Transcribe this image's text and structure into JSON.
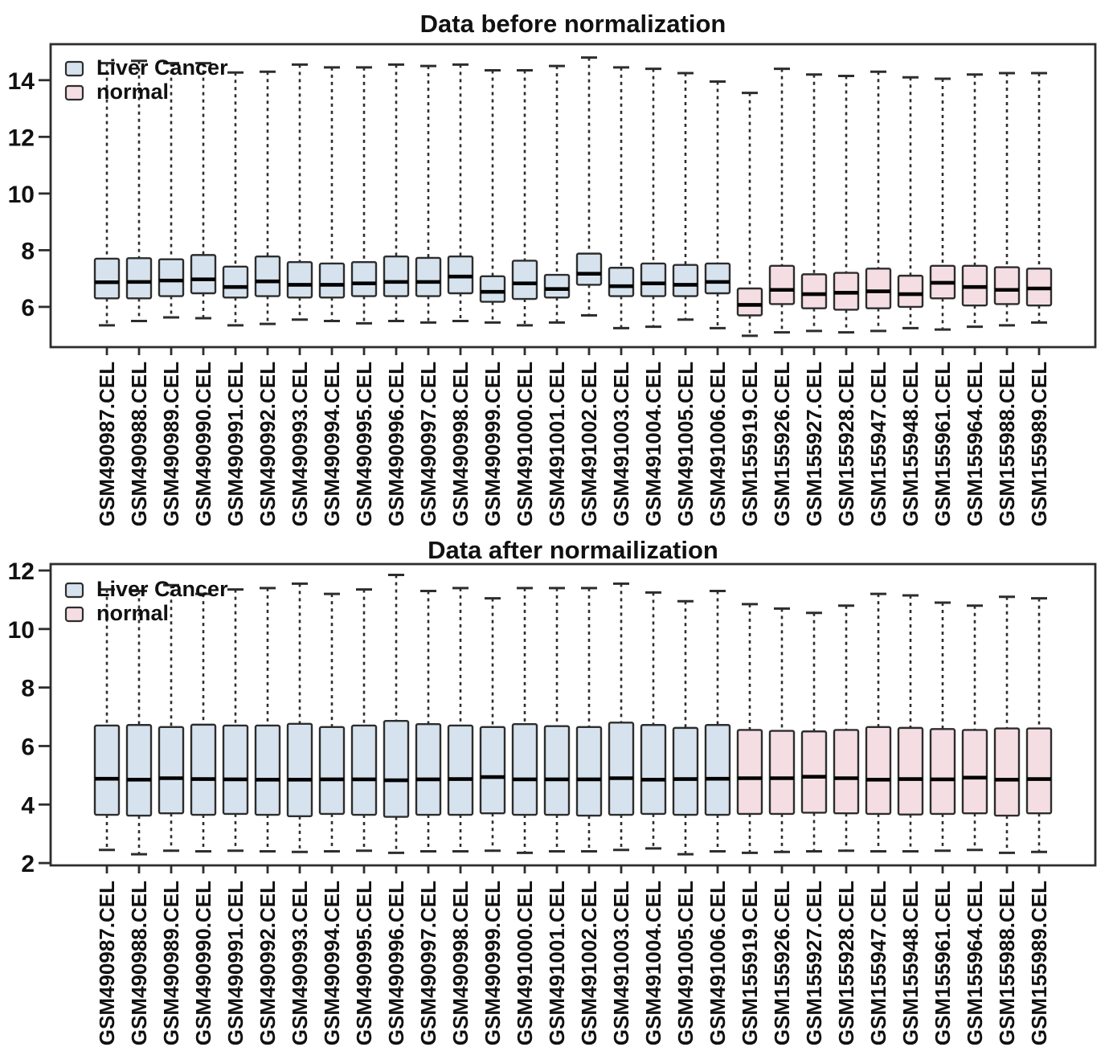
{
  "colors": {
    "liver_cancer_fill": "#d6e3ee",
    "normal_fill": "#f5dee3",
    "box_border": "#2d2d2d",
    "median": "#000000",
    "axis": "#2d2d2d",
    "text": "#111111",
    "background": "#ffffff"
  },
  "chart_data": [
    {
      "type": "boxplot",
      "title": "Data before normalization",
      "ylim": [
        4.58,
        15.27
      ],
      "yticks": [
        6,
        8,
        10,
        12,
        14
      ],
      "grid": false,
      "legend_position": "top-left",
      "legend": [
        {
          "label": "Liver Cancer",
          "group": "liver_cancer"
        },
        {
          "label": "normal",
          "group": "normal"
        }
      ],
      "series": [
        {
          "name": "GSM490987.CEL",
          "group": "liver_cancer",
          "values": {
            "low": 5.35,
            "q1": 6.3,
            "median": 6.87,
            "q3": 7.7,
            "high": 14.6
          }
        },
        {
          "name": "GSM490988.CEL",
          "group": "liver_cancer",
          "values": {
            "low": 5.5,
            "q1": 6.3,
            "median": 6.88,
            "q3": 7.72,
            "high": 14.68
          }
        },
        {
          "name": "GSM490989.CEL",
          "group": "liver_cancer",
          "values": {
            "low": 5.63,
            "q1": 6.38,
            "median": 6.93,
            "q3": 7.68,
            "high": 14.6
          }
        },
        {
          "name": "GSM490990.CEL",
          "group": "liver_cancer",
          "values": {
            "low": 5.6,
            "q1": 6.48,
            "median": 6.97,
            "q3": 7.83,
            "high": 14.6
          }
        },
        {
          "name": "GSM490991.CEL",
          "group": "liver_cancer",
          "values": {
            "low": 5.35,
            "q1": 6.33,
            "median": 6.7,
            "q3": 7.42,
            "high": 14.27
          }
        },
        {
          "name": "GSM490992.CEL",
          "group": "liver_cancer",
          "values": {
            "low": 5.4,
            "q1": 6.38,
            "median": 6.9,
            "q3": 7.78,
            "high": 14.3
          }
        },
        {
          "name": "GSM490993.CEL",
          "group": "liver_cancer",
          "values": {
            "low": 5.55,
            "q1": 6.33,
            "median": 6.78,
            "q3": 7.58,
            "high": 14.55
          }
        },
        {
          "name": "GSM490994.CEL",
          "group": "liver_cancer",
          "values": {
            "low": 5.5,
            "q1": 6.33,
            "median": 6.78,
            "q3": 7.53,
            "high": 14.45
          }
        },
        {
          "name": "GSM490995.CEL",
          "group": "liver_cancer",
          "values": {
            "low": 5.42,
            "q1": 6.38,
            "median": 6.83,
            "q3": 7.58,
            "high": 14.45
          }
        },
        {
          "name": "GSM490996.CEL",
          "group": "liver_cancer",
          "values": {
            "low": 5.5,
            "q1": 6.38,
            "median": 6.88,
            "q3": 7.78,
            "high": 14.55
          }
        },
        {
          "name": "GSM490997.CEL",
          "group": "liver_cancer",
          "values": {
            "low": 5.45,
            "q1": 6.38,
            "median": 6.88,
            "q3": 7.73,
            "high": 14.5
          }
        },
        {
          "name": "GSM490998.CEL",
          "group": "liver_cancer",
          "values": {
            "low": 5.5,
            "q1": 6.48,
            "median": 7.07,
            "q3": 7.78,
            "high": 14.55
          }
        },
        {
          "name": "GSM490999.CEL",
          "group": "liver_cancer",
          "values": {
            "low": 5.45,
            "q1": 6.18,
            "median": 6.53,
            "q3": 7.08,
            "high": 14.35
          }
        },
        {
          "name": "GSM491000.CEL",
          "group": "liver_cancer",
          "values": {
            "low": 5.35,
            "q1": 6.28,
            "median": 6.83,
            "q3": 7.63,
            "high": 14.35
          }
        },
        {
          "name": "GSM491001.CEL",
          "group": "liver_cancer",
          "values": {
            "low": 5.45,
            "q1": 6.33,
            "median": 6.63,
            "q3": 7.13,
            "high": 14.5
          }
        },
        {
          "name": "GSM491002.CEL",
          "group": "liver_cancer",
          "values": {
            "low": 5.7,
            "q1": 6.78,
            "median": 7.17,
            "q3": 7.88,
            "high": 14.8
          }
        },
        {
          "name": "GSM491003.CEL",
          "group": "liver_cancer",
          "values": {
            "low": 5.25,
            "q1": 6.38,
            "median": 6.73,
            "q3": 7.38,
            "high": 14.45
          }
        },
        {
          "name": "GSM491004.CEL",
          "group": "liver_cancer",
          "values": {
            "low": 5.3,
            "q1": 6.38,
            "median": 6.83,
            "q3": 7.53,
            "high": 14.4
          }
        },
        {
          "name": "GSM491005.CEL",
          "group": "liver_cancer",
          "values": {
            "low": 5.55,
            "q1": 6.38,
            "median": 6.78,
            "q3": 7.48,
            "high": 14.25
          }
        },
        {
          "name": "GSM491006.CEL",
          "group": "liver_cancer",
          "values": {
            "low": 5.25,
            "q1": 6.48,
            "median": 6.88,
            "q3": 7.53,
            "high": 13.95
          }
        },
        {
          "name": "GSM155919.CEL",
          "group": "normal",
          "values": {
            "low": 4.98,
            "q1": 5.7,
            "median": 6.07,
            "q3": 6.65,
            "high": 13.55
          }
        },
        {
          "name": "GSM155926.CEL",
          "group": "normal",
          "values": {
            "low": 5.1,
            "q1": 6.1,
            "median": 6.6,
            "q3": 7.45,
            "high": 14.4
          }
        },
        {
          "name": "GSM155927.CEL",
          "group": "normal",
          "values": {
            "low": 5.15,
            "q1": 5.95,
            "median": 6.45,
            "q3": 7.15,
            "high": 14.2
          }
        },
        {
          "name": "GSM155928.CEL",
          "group": "normal",
          "values": {
            "low": 5.1,
            "q1": 5.9,
            "median": 6.5,
            "q3": 7.2,
            "high": 14.15
          }
        },
        {
          "name": "GSM155947.CEL",
          "group": "normal",
          "values": {
            "low": 5.15,
            "q1": 5.95,
            "median": 6.55,
            "q3": 7.35,
            "high": 14.3
          }
        },
        {
          "name": "GSM155948.CEL",
          "group": "normal",
          "values": {
            "low": 5.25,
            "q1": 6.0,
            "median": 6.45,
            "q3": 7.1,
            "high": 14.1
          }
        },
        {
          "name": "GSM155961.CEL",
          "group": "normal",
          "values": {
            "low": 5.2,
            "q1": 6.3,
            "median": 6.85,
            "q3": 7.45,
            "high": 14.05
          }
        },
        {
          "name": "GSM155964.CEL",
          "group": "normal",
          "values": {
            "low": 5.3,
            "q1": 6.05,
            "median": 6.7,
            "q3": 7.45,
            "high": 14.2
          }
        },
        {
          "name": "GSM155988.CEL",
          "group": "normal",
          "values": {
            "low": 5.35,
            "q1": 6.1,
            "median": 6.6,
            "q3": 7.4,
            "high": 14.25
          }
        },
        {
          "name": "GSM155989.CEL",
          "group": "normal",
          "values": {
            "low": 5.45,
            "q1": 6.05,
            "median": 6.65,
            "q3": 7.35,
            "high": 14.25
          }
        }
      ]
    },
    {
      "type": "boxplot",
      "title": "Data after normailization",
      "ylim": [
        1.92,
        12.22
      ],
      "yticks": [
        2,
        4,
        6,
        8,
        10,
        12
      ],
      "grid": false,
      "legend_position": "top-left",
      "legend": [
        {
          "label": "Liver Cancer",
          "group": "liver_cancer"
        },
        {
          "label": "normal",
          "group": "normal"
        }
      ],
      "series": [
        {
          "name": "GSM490987.CEL",
          "group": "liver_cancer",
          "values": {
            "low": 2.45,
            "q1": 3.65,
            "median": 4.88,
            "q3": 6.7,
            "high": 11.35
          }
        },
        {
          "name": "GSM490988.CEL",
          "group": "liver_cancer",
          "values": {
            "low": 2.3,
            "q1": 3.62,
            "median": 4.85,
            "q3": 6.72,
            "high": 11.3
          }
        },
        {
          "name": "GSM490989.CEL",
          "group": "liver_cancer",
          "values": {
            "low": 2.42,
            "q1": 3.7,
            "median": 4.9,
            "q3": 6.65,
            "high": 11.5
          }
        },
        {
          "name": "GSM490990.CEL",
          "group": "liver_cancer",
          "values": {
            "low": 2.4,
            "q1": 3.65,
            "median": 4.87,
            "q3": 6.73,
            "high": 11.2
          }
        },
        {
          "name": "GSM490991.CEL",
          "group": "liver_cancer",
          "values": {
            "low": 2.42,
            "q1": 3.68,
            "median": 4.86,
            "q3": 6.7,
            "high": 11.35
          }
        },
        {
          "name": "GSM490992.CEL",
          "group": "liver_cancer",
          "values": {
            "low": 2.4,
            "q1": 3.65,
            "median": 4.85,
            "q3": 6.7,
            "high": 11.4
          }
        },
        {
          "name": "GSM490993.CEL",
          "group": "liver_cancer",
          "values": {
            "low": 2.38,
            "q1": 3.6,
            "median": 4.85,
            "q3": 6.76,
            "high": 11.55
          }
        },
        {
          "name": "GSM490994.CEL",
          "group": "liver_cancer",
          "values": {
            "low": 2.4,
            "q1": 3.68,
            "median": 4.86,
            "q3": 6.65,
            "high": 11.2
          }
        },
        {
          "name": "GSM490995.CEL",
          "group": "liver_cancer",
          "values": {
            "low": 2.42,
            "q1": 3.65,
            "median": 4.86,
            "q3": 6.7,
            "high": 11.35
          }
        },
        {
          "name": "GSM490996.CEL",
          "group": "liver_cancer",
          "values": {
            "low": 2.35,
            "q1": 3.58,
            "median": 4.83,
            "q3": 6.86,
            "high": 11.85
          }
        },
        {
          "name": "GSM490997.CEL",
          "group": "liver_cancer",
          "values": {
            "low": 2.4,
            "q1": 3.65,
            "median": 4.86,
            "q3": 6.75,
            "high": 11.3
          }
        },
        {
          "name": "GSM490998.CEL",
          "group": "liver_cancer",
          "values": {
            "low": 2.4,
            "q1": 3.65,
            "median": 4.87,
            "q3": 6.7,
            "high": 11.4
          }
        },
        {
          "name": "GSM490999.CEL",
          "group": "liver_cancer",
          "values": {
            "low": 2.42,
            "q1": 3.7,
            "median": 4.94,
            "q3": 6.65,
            "high": 11.05
          }
        },
        {
          "name": "GSM491000.CEL",
          "group": "liver_cancer",
          "values": {
            "low": 2.35,
            "q1": 3.65,
            "median": 4.86,
            "q3": 6.75,
            "high": 11.4
          }
        },
        {
          "name": "GSM491001.CEL",
          "group": "liver_cancer",
          "values": {
            "low": 2.4,
            "q1": 3.65,
            "median": 4.86,
            "q3": 6.68,
            "high": 11.4
          }
        },
        {
          "name": "GSM491002.CEL",
          "group": "liver_cancer",
          "values": {
            "low": 2.4,
            "q1": 3.62,
            "median": 4.86,
            "q3": 6.65,
            "high": 11.4
          }
        },
        {
          "name": "GSM491003.CEL",
          "group": "liver_cancer",
          "values": {
            "low": 2.45,
            "q1": 3.65,
            "median": 4.9,
            "q3": 6.8,
            "high": 11.55
          }
        },
        {
          "name": "GSM491004.CEL",
          "group": "liver_cancer",
          "values": {
            "low": 2.5,
            "q1": 3.68,
            "median": 4.85,
            "q3": 6.72,
            "high": 11.25
          }
        },
        {
          "name": "GSM491005.CEL",
          "group": "liver_cancer",
          "values": {
            "low": 2.3,
            "q1": 3.65,
            "median": 4.87,
            "q3": 6.62,
            "high": 10.95
          }
        },
        {
          "name": "GSM491006.CEL",
          "group": "liver_cancer",
          "values": {
            "low": 2.4,
            "q1": 3.65,
            "median": 4.88,
            "q3": 6.72,
            "high": 11.3
          }
        },
        {
          "name": "GSM155919.CEL",
          "group": "normal",
          "values": {
            "low": 2.35,
            "q1": 3.68,
            "median": 4.9,
            "q3": 6.55,
            "high": 10.85
          }
        },
        {
          "name": "GSM155926.CEL",
          "group": "normal",
          "values": {
            "low": 2.38,
            "q1": 3.68,
            "median": 4.9,
            "q3": 6.52,
            "high": 10.7
          }
        },
        {
          "name": "GSM155927.CEL",
          "group": "normal",
          "values": {
            "low": 2.4,
            "q1": 3.72,
            "median": 4.95,
            "q3": 6.5,
            "high": 10.55
          }
        },
        {
          "name": "GSM155928.CEL",
          "group": "normal",
          "values": {
            "low": 2.42,
            "q1": 3.7,
            "median": 4.9,
            "q3": 6.55,
            "high": 10.8
          }
        },
        {
          "name": "GSM155947.CEL",
          "group": "normal",
          "values": {
            "low": 2.4,
            "q1": 3.68,
            "median": 4.85,
            "q3": 6.65,
            "high": 11.2
          }
        },
        {
          "name": "GSM155948.CEL",
          "group": "normal",
          "values": {
            "low": 2.4,
            "q1": 3.66,
            "median": 4.87,
            "q3": 6.62,
            "high": 11.15
          }
        },
        {
          "name": "GSM155961.CEL",
          "group": "normal",
          "values": {
            "low": 2.42,
            "q1": 3.68,
            "median": 4.86,
            "q3": 6.58,
            "high": 10.9
          }
        },
        {
          "name": "GSM155964.CEL",
          "group": "normal",
          "values": {
            "low": 2.45,
            "q1": 3.7,
            "median": 4.92,
            "q3": 6.55,
            "high": 10.8
          }
        },
        {
          "name": "GSM155988.CEL",
          "group": "normal",
          "values": {
            "low": 2.35,
            "q1": 3.62,
            "median": 4.85,
            "q3": 6.6,
            "high": 11.1
          }
        },
        {
          "name": "GSM155989.CEL",
          "group": "normal",
          "values": {
            "low": 2.38,
            "q1": 3.7,
            "median": 4.87,
            "q3": 6.6,
            "high": 11.05
          }
        }
      ]
    }
  ]
}
